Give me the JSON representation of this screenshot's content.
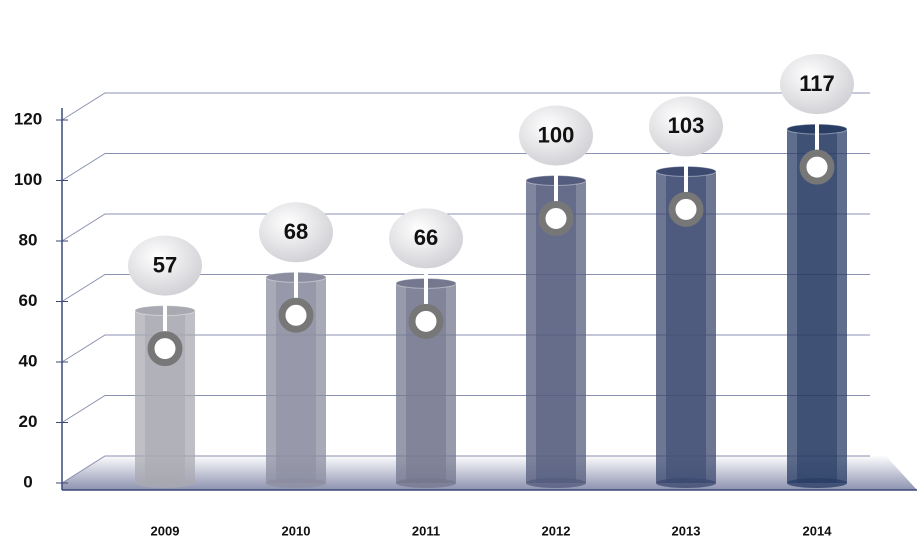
{
  "chart_data": {
    "type": "bar",
    "categories": [
      "2009",
      "2010",
      "2011",
      "2012",
      "2013",
      "2014"
    ],
    "values": [
      57,
      68,
      66,
      100,
      103,
      117
    ],
    "colors": [
      "#a9a9b1",
      "#8c8ea0",
      "#74788f",
      "#555d7e",
      "#3c4a70",
      "#2a3e65"
    ],
    "ylim": [
      0,
      120
    ],
    "yticks": [
      0,
      20,
      40,
      60,
      80,
      100,
      120
    ],
    "grid": true
  }
}
